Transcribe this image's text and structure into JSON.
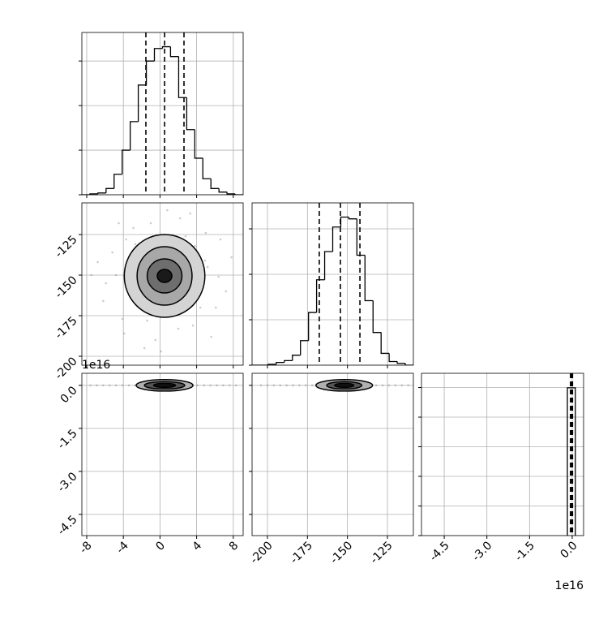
{
  "chart_data": [
    {
      "type": "histogram",
      "xlim": [
        -8.53,
        9.08
      ],
      "ylim": [
        0,
        182
      ],
      "xticks": [
        -8,
        -4,
        0,
        4,
        8
      ],
      "yticks": [
        0,
        50,
        100,
        150
      ],
      "grid": true,
      "x_tick_labels": false,
      "y_tick_labels": false,
      "color": "#000000",
      "bins": [
        -8.53,
        -7.65,
        -6.77,
        -5.89,
        -5.01,
        -4.13,
        -3.25,
        -2.37,
        -1.49,
        -0.61,
        0.27,
        1.15,
        2.04,
        2.92,
        3.8,
        4.68,
        5.56,
        6.44,
        7.32,
        8.2,
        9.08
      ],
      "values": [
        0,
        1,
        2,
        7,
        23,
        50,
        82,
        123,
        150,
        164,
        166,
        155,
        109,
        73,
        41,
        18,
        7,
        3,
        1,
        0
      ],
      "quantiles": [
        -1.54,
        0.5,
        2.62
      ]
    },
    {
      "type": "scatter2d",
      "xlim": [
        -8.53,
        9.08
      ],
      "ylim": [
        -205.5,
        -105.5
      ],
      "xticks": [
        -8,
        -4,
        0,
        4,
        8
      ],
      "yticks": [
        -200,
        -175,
        -150,
        -125
      ],
      "grid": true,
      "x_tick_labels": false,
      "y_tick_labels": true,
      "color": "#7f7f7f",
      "x": [
        -3.1,
        2.5,
        -4.8,
        5.2,
        0.3,
        1.2,
        -2.2,
        3.8,
        -5.9,
        6.4,
        -1.0,
        2.0,
        -3.7,
        4.4,
        0.8,
        -0.5,
        -6.8,
        7.2,
        -4.1,
        5.0,
        1.7,
        -1.9,
        3.1,
        -2.7,
        4.0,
        -0.2,
        1.0,
        -3.4,
        2.8,
        -5.2,
        6.1,
        0.1,
        -1.4,
        3.6,
        -6.2,
        7.8,
        -7.5,
        2.2,
        -2.9,
        4.9,
        0.6,
        -0.9,
        1.5,
        -4.5,
        5.6,
        -1.7,
        3.3,
        -3.9,
        6.6,
        0.4
      ],
      "y": [
        -140,
        -162,
        -150,
        -145,
        -128,
        -172,
        -165,
        -132,
        -155,
        -151,
        -118,
        -183,
        -128,
        -170,
        -110,
        -190,
        -142,
        -160,
        -177,
        -124,
        -137,
        -147,
        -154,
        -131,
        -158,
        -166,
        -143,
        -160,
        -126,
        -136,
        -170,
        -197,
        -178,
        -181,
        -166,
        -139,
        -150,
        -115,
        -121,
        -141,
        -155,
        -139,
        -160,
        -118,
        -188,
        -195,
        -112,
        -186,
        -128,
        -147
      ],
      "contours": [
        {
          "cx": 0.5,
          "cy": -150.5,
          "rx": 4.4,
          "ry": 25.5
        },
        {
          "cx": 0.5,
          "cy": -150.5,
          "rx": 3.0,
          "ry": 18
        },
        {
          "cx": 0.5,
          "cy": -150.5,
          "rx": 1.9,
          "ry": 10.5
        },
        {
          "cx": 0.5,
          "cy": -150.5,
          "rx": 0.8,
          "ry": 4
        }
      ],
      "contour_fills": [
        "#d4d4d4",
        "#a8a8a8",
        "#6e6e6e",
        "#1a1a1a"
      ]
    },
    {
      "type": "histogram",
      "xlim": [
        -209.6,
        -108.8
      ],
      "ylim": [
        0,
        178.6
      ],
      "xticks": [
        -200,
        -175,
        -150,
        -125
      ],
      "yticks": [
        0,
        50,
        100,
        150
      ],
      "grid": true,
      "x_tick_labels": false,
      "y_tick_labels": false,
      "color": "#000000",
      "bins": [
        -209.6,
        -204.56,
        -199.52,
        -194.48,
        -189.44,
        -184.4,
        -179.36,
        -174.32,
        -169.28,
        -164.24,
        -159.2,
        -154.16,
        -149.12,
        -144.08,
        -139.04,
        -134,
        -128.96,
        -123.92,
        -118.88,
        -113.84,
        -108.8
      ],
      "values": [
        0,
        0,
        1,
        3,
        5,
        11,
        27,
        58,
        94,
        125,
        152,
        163,
        161,
        121,
        71,
        36,
        13,
        4,
        2,
        0
      ],
      "quantiles": [
        -167.6,
        -154.4,
        -142.2
      ]
    },
    {
      "type": "scatter2d",
      "xlim": [
        -8.53,
        9.08
      ],
      "ylim": [
        -5.24,
        0.42
      ],
      "xticks": [
        -8,
        -4,
        0,
        4,
        8
      ],
      "yticks": [
        {
          "value": 0,
          "label": "0.0"
        },
        -1.5,
        {
          "value": -3,
          "label": "-3.0"
        },
        -4.5
      ],
      "grid": true,
      "x_tick_labels": true,
      "y_tick_labels": true,
      "color": "#7f7f7f",
      "y_offset_label": "1e16",
      "x": [
        -7.6,
        -6.9,
        -6.2,
        -5.5,
        -4.8,
        -4.1,
        -3.4,
        -2.7,
        -2.0,
        -1.3,
        2.0,
        2.7,
        3.4,
        4.1,
        4.8,
        5.5,
        6.2,
        6.9,
        7.6,
        8.3
      ],
      "y": [
        0,
        0,
        0,
        0,
        0,
        0,
        0,
        0,
        0,
        0,
        0,
        0,
        0,
        0,
        0,
        0,
        0,
        0,
        0,
        0
      ],
      "contours": [
        {
          "cx": 0.5,
          "cy": 0,
          "rx": 3.1,
          "ry": 0.2
        },
        {
          "cx": 0.5,
          "cy": 0,
          "rx": 2.2,
          "ry": 0.13
        },
        {
          "cx": 0.5,
          "cy": 0,
          "rx": 1.2,
          "ry": 0.07
        }
      ],
      "contour_fills": [
        "#b0b0b0",
        "#555555",
        "#111111"
      ]
    },
    {
      "type": "scatter2d",
      "xlim": [
        -209.6,
        -108.8
      ],
      "ylim": [
        -5.24,
        0.42
      ],
      "xticks": [
        -200,
        -175,
        -150,
        -125
      ],
      "yticks": [
        {
          "value": 0,
          "label": "0.0"
        },
        -1.5,
        {
          "value": -3,
          "label": "-3.0"
        },
        -4.5
      ],
      "grid": true,
      "x_tick_labels": true,
      "y_tick_labels": false,
      "color": "#7f7f7f",
      "x": [
        -204,
        -200,
        -196,
        -192,
        -188,
        -184,
        -180,
        -176,
        -172,
        -132,
        -128,
        -124,
        -120,
        -116,
        -112
      ],
      "y": [
        0,
        0,
        0,
        0,
        0,
        0,
        0,
        0,
        0,
        0,
        0,
        0,
        0,
        0,
        0
      ],
      "contours": [
        {
          "cx": -152,
          "cy": 0,
          "rx": 17.7,
          "ry": 0.2
        },
        {
          "cx": -152,
          "cy": 0,
          "rx": 11,
          "ry": 0.13
        },
        {
          "cx": -152,
          "cy": 0,
          "rx": 6,
          "ry": 0.07
        }
      ],
      "contour_fills": [
        "#b0b0b0",
        "#555555",
        "#111111"
      ]
    },
    {
      "type": "histogram",
      "xlim": [
        -5.3,
        0.4
      ],
      "ylim": [
        0,
        5480
      ],
      "xticks": [
        -4.5,
        {
          "value": -3,
          "label": "-3.0"
        },
        -1.5,
        {
          "value": 0,
          "label": "0.0"
        }
      ],
      "yticks": [
        0,
        1000,
        2000,
        3000,
        4000,
        5000
      ],
      "grid": true,
      "x_tick_labels": true,
      "y_tick_labels": false,
      "color": "#000000",
      "x_offset_label": "1e16",
      "bins": [
        -0.17,
        0.11
      ],
      "values": [
        4990
      ],
      "quantiles": [
        -0.06,
        -0.02,
        0.01
      ]
    }
  ]
}
